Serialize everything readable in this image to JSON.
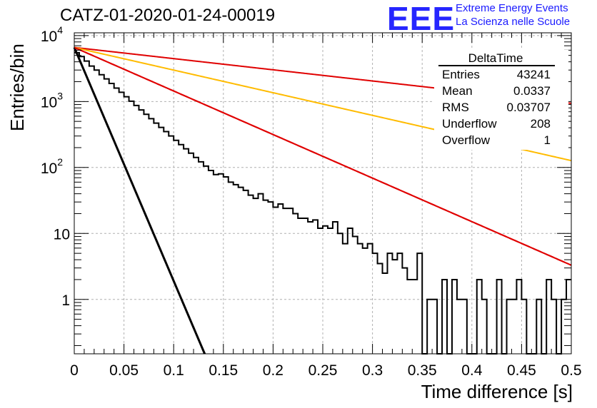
{
  "page_title": "CATZ-01-2020-01-24-00019",
  "logo": {
    "mark": "EEE",
    "line1": "Extreme Energy Events",
    "line2": "La Scienza nelle Scuole",
    "color": "#2626ff"
  },
  "stats_box": {
    "title": "DeltaTime",
    "rows": [
      {
        "label": "Entries",
        "value": "43241"
      },
      {
        "label": "Mean",
        "value": "0.0337"
      },
      {
        "label": "RMS",
        "value": "0.03707"
      },
      {
        "label": "Underflow",
        "value": "208"
      },
      {
        "label": "Overflow",
        "value": "1"
      }
    ]
  },
  "chart_data": {
    "type": "area",
    "xlabel": "Time difference [s]",
    "ylabel": "Entries/bin",
    "xlim": [
      0,
      0.5
    ],
    "ylim": [
      0.15,
      11000
    ],
    "yscale": "log",
    "grid": true,
    "x_ticks": [
      "0",
      "0.05",
      "0.1",
      "0.15",
      "0.2",
      "0.25",
      "0.3",
      "0.35",
      "0.4",
      "0.45",
      "0.5"
    ],
    "y_ticks": [
      {
        "value": 10000,
        "base": "10",
        "exp": "4"
      },
      {
        "value": 1000,
        "base": "10",
        "exp": "3"
      },
      {
        "value": 100,
        "base": "10",
        "exp": "2"
      },
      {
        "value": 10,
        "base": "10",
        "exp": ""
      },
      {
        "value": 1,
        "base": "1",
        "exp": ""
      }
    ],
    "histogram": {
      "bin_width": 0.005,
      "x_start": 0,
      "values": [
        5500,
        4800,
        4100,
        3450,
        3000,
        2550,
        2200,
        1880,
        1600,
        1380,
        1180,
        1010,
        870,
        745,
        640,
        550,
        470,
        405,
        350,
        300,
        258,
        222,
        192,
        165,
        142,
        122,
        105,
        90,
        78,
        80,
        72,
        60,
        55,
        50,
        45,
        38,
        34,
        40,
        32,
        30,
        25,
        28,
        24,
        24,
        20,
        17,
        17,
        15,
        16,
        12,
        13,
        12,
        15,
        10,
        7,
        12,
        9,
        7,
        6,
        7,
        5,
        3.5,
        2.5,
        5,
        4,
        5,
        3,
        2,
        2,
        5,
        0,
        1,
        1,
        0,
        2,
        0,
        2,
        1,
        1,
        0,
        0,
        2,
        1,
        0,
        0,
        2,
        0,
        1,
        1,
        2,
        1,
        0,
        0,
        1,
        0,
        2,
        1,
        0,
        1,
        2
      ],
      "color": "#000000"
    },
    "series": [
      {
        "model": "exponential",
        "A": 6600,
        "slope": -81.5,
        "color": "#000000"
      },
      {
        "model": "exponential",
        "A": 6600,
        "slope": -15.2,
        "color": "#e00000"
      },
      {
        "model": "exponential",
        "A": 6600,
        "slope": -3.9,
        "color": "#e00000"
      },
      {
        "model": "exponential",
        "A": 6600,
        "slope": -7.9,
        "color": "#ffbb00"
      },
      {
        "model": "exponential",
        "A": 6600,
        "slope": -15.2,
        "color": "#e00000"
      }
    ]
  }
}
